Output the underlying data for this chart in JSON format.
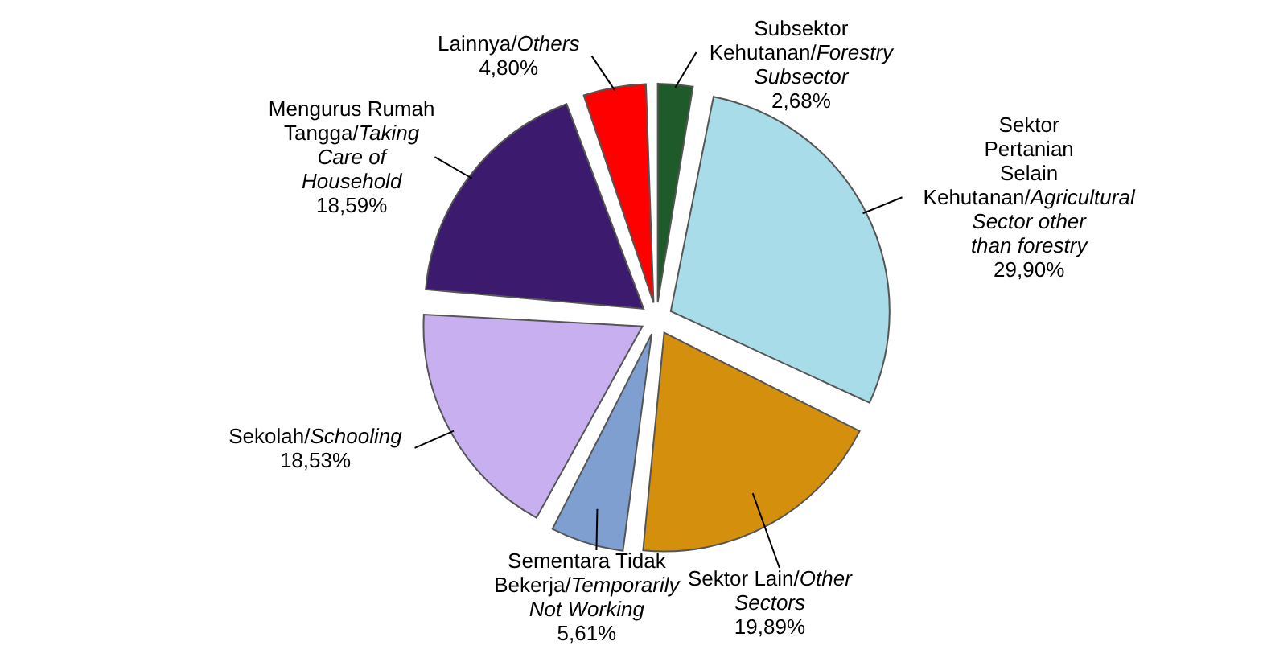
{
  "chart_data": {
    "type": "pie",
    "categories": [
      "Subsektor Kehutanan/Forestry Subsector",
      "Sektor Pertanian Selain Kehutanan/Agricultural Sector other than forestry",
      "Sektor Lain/Other Sectors",
      "Sementara Tidak Bekerja/Temporarily Not Working",
      "Sekolah/Schooling",
      "Mengurus Rumah Tangga/Taking Care of Household",
      "Lainnya/Others"
    ],
    "values": [
      2.68,
      29.9,
      19.89,
      5.61,
      18.53,
      18.59,
      4.8
    ],
    "value_labels": [
      "2,68%",
      "29,90%",
      "19,89%",
      "5,61%",
      "18,53%",
      "18,59%",
      "4,80%"
    ],
    "colors": [
      "#1e5a2a",
      "#a8dce8",
      "#d4900c",
      "#7f9fd0",
      "#c8b0f0",
      "#3c1a6e",
      "#ff0000"
    ]
  }
}
